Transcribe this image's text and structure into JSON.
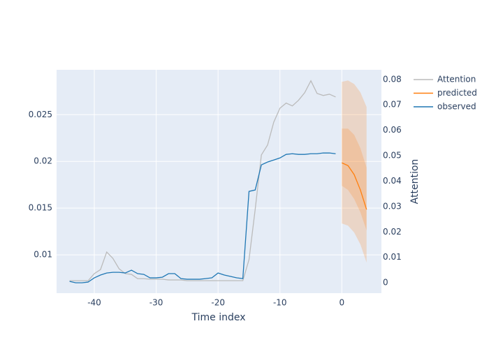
{
  "chart_data": {
    "type": "line",
    "x_title": "Time index",
    "y2_title": "Attention",
    "xlim": [
      -46.1,
      6.4
    ],
    "xticks": [
      -40,
      -30,
      -20,
      -10,
      0
    ],
    "ylim": [
      0.0059,
      0.0298
    ],
    "yticks": [
      0.01,
      0.015,
      0.02,
      0.025
    ],
    "y2lim": [
      -0.0041,
      0.0838
    ],
    "y2ticks": [
      0,
      0.01,
      0.02,
      0.03,
      0.04,
      0.05,
      0.06,
      0.07,
      0.08
    ],
    "grid": true,
    "series": [
      {
        "name": "Attention",
        "color": "#bbbbbb",
        "axis": "y2",
        "x": [
          -44,
          -43,
          -42,
          -41,
          -40,
          -39,
          -38,
          -37,
          -36,
          -35,
          -34,
          -33,
          -32,
          -31,
          -30,
          -29,
          -28,
          -27,
          -26,
          -25,
          -24,
          -23,
          -22,
          -21,
          -20,
          -19,
          -18,
          -17,
          -16,
          -15,
          -14,
          -13,
          -12,
          -11,
          -10,
          -9,
          -8,
          -7,
          -6,
          -5,
          -4,
          -3,
          -2,
          -1
        ],
        "values": [
          0.0008,
          0.0008,
          0.0008,
          0.0008,
          0.0036,
          0.0052,
          0.0121,
          0.0096,
          0.0055,
          0.0036,
          0.0033,
          0.0016,
          0.0016,
          0.0014,
          0.0014,
          0.0014,
          0.0011,
          0.0011,
          0.0011,
          0.0008,
          0.0008,
          0.0008,
          0.0008,
          0.0008,
          0.0008,
          0.0008,
          0.0008,
          0.0008,
          0.0008,
          0.0091,
          0.0289,
          0.0503,
          0.0542,
          0.0632,
          0.0687,
          0.0707,
          0.0696,
          0.0718,
          0.0748,
          0.0795,
          0.0745,
          0.0737,
          0.0742,
          0.0731
        ]
      },
      {
        "name": "predicted",
        "color": "#ff7f0e",
        "x": [
          0,
          1,
          2,
          3,
          4
        ],
        "values": [
          0.01985,
          0.01955,
          0.01858,
          0.01694,
          0.01485
        ],
        "bands": [
          {
            "upper": [
              0.02851,
              0.02866,
              0.02828,
              0.02739,
              0.02582
            ],
            "lower": [
              0.01336,
              0.01313,
              0.01239,
              0.01112,
              0.00918
            ]
          },
          {
            "upper": [
              0.02351,
              0.02351,
              0.02284,
              0.02142,
              0.01933
            ],
            "lower": [
              0.01739,
              0.01694,
              0.01597,
              0.01455,
              0.01261
            ]
          }
        ]
      },
      {
        "name": "observed",
        "color": "#1f77b4",
        "x": [
          -44,
          -43,
          -42,
          -41,
          -40,
          -39,
          -38,
          -37,
          -36,
          -35,
          -34,
          -33,
          -32,
          -31,
          -30,
          -29,
          -28,
          -27,
          -26,
          -25,
          -24,
          -23,
          -22,
          -21,
          -20,
          -19,
          -18,
          -17,
          -16,
          -15,
          -14,
          -13,
          -12,
          -11,
          -10,
          -9,
          -8,
          -7,
          -6,
          -5,
          -4,
          -3,
          -2,
          -1
        ],
        "values": [
          0.00716,
          0.00701,
          0.00701,
          0.00709,
          0.00754,
          0.00784,
          0.00806,
          0.00813,
          0.00813,
          0.00806,
          0.00836,
          0.00799,
          0.00791,
          0.00754,
          0.00754,
          0.00761,
          0.00799,
          0.00799,
          0.00746,
          0.00739,
          0.00739,
          0.00739,
          0.00746,
          0.00754,
          0.00806,
          0.00784,
          0.00769,
          0.00754,
          0.00746,
          0.01679,
          0.01694,
          0.01963,
          0.01993,
          0.02015,
          0.02037,
          0.02075,
          0.02082,
          0.02075,
          0.02075,
          0.02082,
          0.02082,
          0.0209,
          0.0209,
          0.02082
        ]
      }
    ]
  }
}
